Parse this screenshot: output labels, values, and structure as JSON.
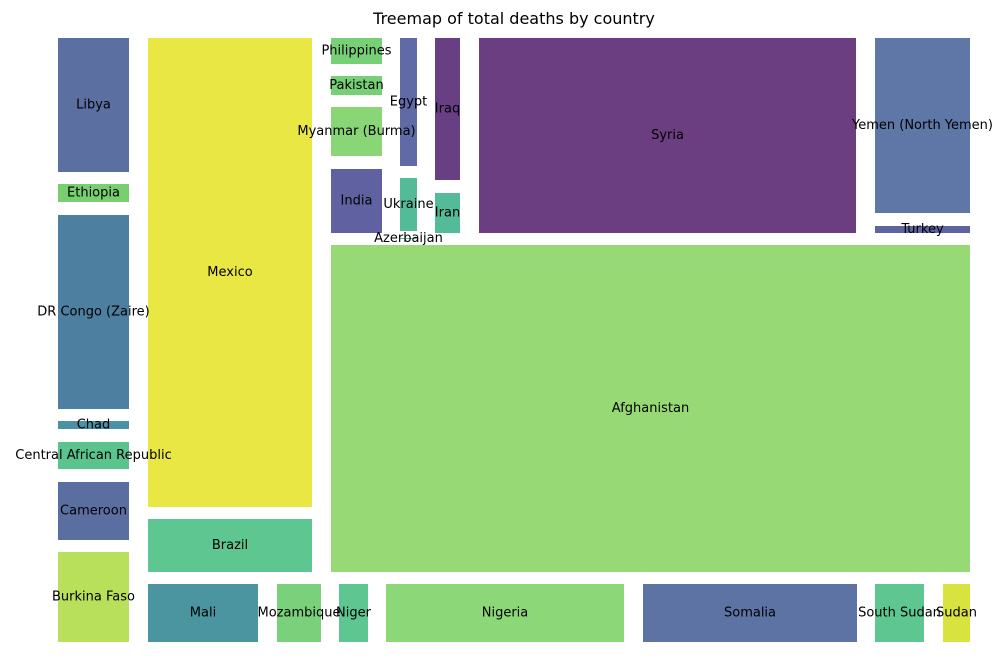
{
  "chart_data": {
    "type": "treemap",
    "title": "Treemap of total deaths by country",
    "items": [
      {
        "label": "Libya",
        "color": "#5b6fa1"
      },
      {
        "label": "Ethiopia",
        "color": "#78cf6f"
      },
      {
        "label": "DR Congo (Zaire)",
        "color": "#4d7fa0"
      },
      {
        "label": "Chad",
        "color": "#4a92a3"
      },
      {
        "label": "Central African Republic",
        "color": "#5bc48c"
      },
      {
        "label": "Cameroon",
        "color": "#5a6fa0"
      },
      {
        "label": "Burkina Faso",
        "color": "#b9e05a"
      },
      {
        "label": "Mexico",
        "color": "#e8e744"
      },
      {
        "label": "Brazil",
        "color": "#5ec690"
      },
      {
        "label": "Philippines",
        "color": "#78d076"
      },
      {
        "label": "Pakistan",
        "color": "#78d076"
      },
      {
        "label": "Myanmar (Burma)",
        "color": "#89d677"
      },
      {
        "label": "India",
        "color": "#5f61a0"
      },
      {
        "label": "Egypt",
        "color": "#5f6aa6"
      },
      {
        "label": "Ukraine",
        "color": "#54bb98"
      },
      {
        "label": "Azerbaijan",
        "color": "#5cc391"
      },
      {
        "label": "Iraq",
        "color": "#693f84"
      },
      {
        "label": "Iran",
        "color": "#54bb98"
      },
      {
        "label": "Syria",
        "color": "#6a3e80"
      },
      {
        "label": "Yemen (North Yemen)",
        "color": "#5f77a6"
      },
      {
        "label": "Turkey",
        "color": "#5f64a0"
      },
      {
        "label": "Afghanistan",
        "color": "#97da75"
      },
      {
        "label": "Mali",
        "color": "#4a95a0"
      },
      {
        "label": "Mozambique",
        "color": "#7bd07c"
      },
      {
        "label": "Niger",
        "color": "#5ec690"
      },
      {
        "label": "Nigeria",
        "color": "#8cd778"
      },
      {
        "label": "Somalia",
        "color": "#5d73a4"
      },
      {
        "label": "South Sudan",
        "color": "#5ec690"
      },
      {
        "label": "Sudan",
        "color": "#d9e340"
      }
    ]
  }
}
